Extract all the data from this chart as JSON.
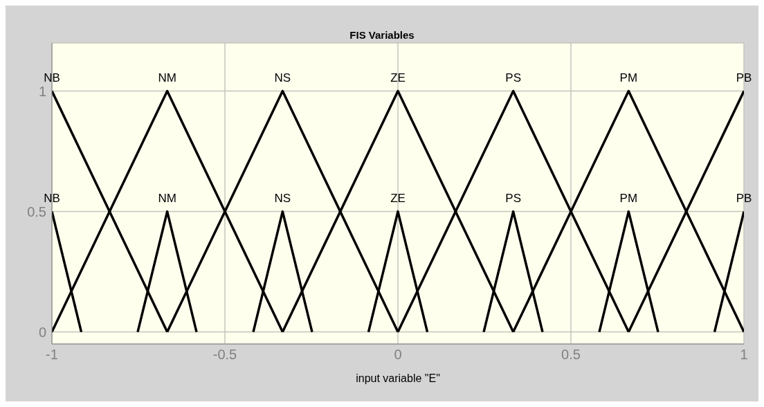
{
  "chart_data": {
    "type": "line",
    "title": "FIS Variables",
    "xlabel": "input variable \"E\"",
    "xlim": [
      -1,
      1
    ],
    "xticks": [
      -1,
      -0.5,
      0,
      0.5,
      1
    ],
    "ylim": [
      -0.05,
      1.2
    ],
    "yticks": [
      0,
      0.5,
      1
    ],
    "grid": true,
    "series": [
      {
        "name": "NB",
        "color": "#000000",
        "x": [
          -1,
          -0.6667
        ],
        "values": [
          1,
          0
        ]
      },
      {
        "name": "NM",
        "color": "#000000",
        "x": [
          -1,
          -0.6667,
          -0.3333
        ],
        "values": [
          0,
          1,
          0
        ]
      },
      {
        "name": "NS",
        "color": "#000000",
        "x": [
          -0.6667,
          -0.3333,
          0
        ],
        "values": [
          0,
          1,
          0
        ]
      },
      {
        "name": "ZE",
        "color": "#000000",
        "x": [
          -0.3333,
          0,
          0.3333
        ],
        "values": [
          0,
          1,
          0
        ]
      },
      {
        "name": "PS",
        "color": "#000000",
        "x": [
          0,
          0.3333,
          0.6667
        ],
        "values": [
          0,
          1,
          0
        ]
      },
      {
        "name": "PM",
        "color": "#000000",
        "x": [
          0.3333,
          0.6667,
          1
        ],
        "values": [
          0,
          1,
          0
        ]
      },
      {
        "name": "PB",
        "color": "#000000",
        "x": [
          0.6667,
          1
        ],
        "values": [
          0,
          1
        ]
      },
      {
        "name": "NB",
        "color": "#000000",
        "x": [
          -1,
          -0.915
        ],
        "values": [
          0.5,
          0
        ]
      },
      {
        "name": "NM",
        "color": "#000000",
        "x": [
          -0.752,
          -0.6667,
          -0.582
        ],
        "values": [
          0,
          0.5,
          0
        ]
      },
      {
        "name": "NS",
        "color": "#000000",
        "x": [
          -0.418,
          -0.3333,
          -0.248
        ],
        "values": [
          0,
          0.5,
          0
        ]
      },
      {
        "name": "ZE",
        "color": "#000000",
        "x": [
          -0.085,
          0,
          0.085
        ],
        "values": [
          0,
          0.5,
          0
        ]
      },
      {
        "name": "PS",
        "color": "#000000",
        "x": [
          0.248,
          0.3333,
          0.418
        ],
        "values": [
          0,
          0.5,
          0
        ]
      },
      {
        "name": "PM",
        "color": "#000000",
        "x": [
          0.582,
          0.6667,
          0.752
        ],
        "values": [
          0,
          0.5,
          0
        ]
      },
      {
        "name": "PB",
        "color": "#000000",
        "x": [
          0.915,
          1
        ],
        "values": [
          0,
          0.5
        ]
      }
    ]
  }
}
